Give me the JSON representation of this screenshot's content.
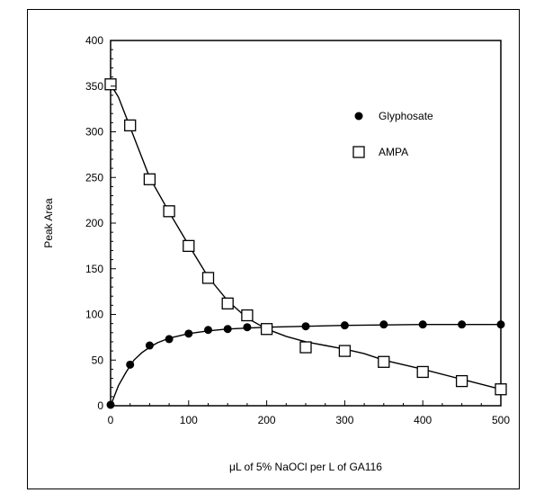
{
  "chart_data": {
    "type": "scatter",
    "xlabel": "μL of 5% NaOCl per L of GA116",
    "ylabel": "Peak Area",
    "xlim": [
      0,
      500
    ],
    "ylim": [
      0,
      400
    ],
    "xticks": [
      "0",
      "100",
      "200",
      "300",
      "400",
      "500"
    ],
    "yticks": [
      "0",
      "50",
      "100",
      "150",
      "200",
      "250",
      "300",
      "350",
      "400"
    ],
    "legend_position": "top-right",
    "grid": false,
    "series": [
      {
        "name": "Glyphosate",
        "marker": "filled-circle",
        "color": "#000000",
        "points": [
          [
            0,
            1
          ],
          [
            25,
            45
          ],
          [
            50,
            66
          ],
          [
            75,
            73
          ],
          [
            100,
            79
          ],
          [
            125,
            83
          ],
          [
            150,
            84
          ],
          [
            175,
            86
          ],
          [
            250,
            87
          ],
          [
            300,
            88
          ],
          [
            350,
            89
          ],
          [
            400,
            89
          ],
          [
            450,
            89
          ],
          [
            500,
            89
          ]
        ],
        "curve": [
          [
            0,
            0
          ],
          [
            10,
            22
          ],
          [
            20,
            37
          ],
          [
            30,
            50
          ],
          [
            40,
            58
          ],
          [
            50,
            64
          ],
          [
            60,
            69
          ],
          [
            75,
            74
          ],
          [
            100,
            79
          ],
          [
            125,
            82
          ],
          [
            150,
            84
          ],
          [
            175,
            85
          ],
          [
            200,
            86
          ],
          [
            250,
            87
          ],
          [
            300,
            88
          ],
          [
            350,
            88.5
          ],
          [
            400,
            89
          ],
          [
            450,
            89
          ],
          [
            500,
            89
          ]
        ]
      },
      {
        "name": "AMPA",
        "marker": "open-square",
        "color": "#000000",
        "points": [
          [
            0,
            352
          ],
          [
            25,
            307
          ],
          [
            50,
            248
          ],
          [
            75,
            213
          ],
          [
            100,
            175
          ],
          [
            125,
            140
          ],
          [
            150,
            112
          ],
          [
            175,
            99
          ],
          [
            200,
            84
          ],
          [
            250,
            64
          ],
          [
            300,
            60
          ],
          [
            350,
            48
          ],
          [
            400,
            37
          ],
          [
            450,
            27
          ],
          [
            500,
            18
          ]
        ],
        "curve": [
          [
            0,
            352
          ],
          [
            10,
            338
          ],
          [
            25,
            305
          ],
          [
            40,
            272
          ],
          [
            50,
            250
          ],
          [
            75,
            212
          ],
          [
            100,
            176
          ],
          [
            125,
            141
          ],
          [
            150,
            115
          ],
          [
            175,
            96
          ],
          [
            200,
            84
          ],
          [
            225,
            76
          ],
          [
            250,
            70
          ],
          [
            275,
            66
          ],
          [
            300,
            62
          ],
          [
            325,
            57
          ],
          [
            350,
            50
          ],
          [
            400,
            40
          ],
          [
            450,
            29
          ],
          [
            500,
            18
          ]
        ]
      }
    ]
  }
}
